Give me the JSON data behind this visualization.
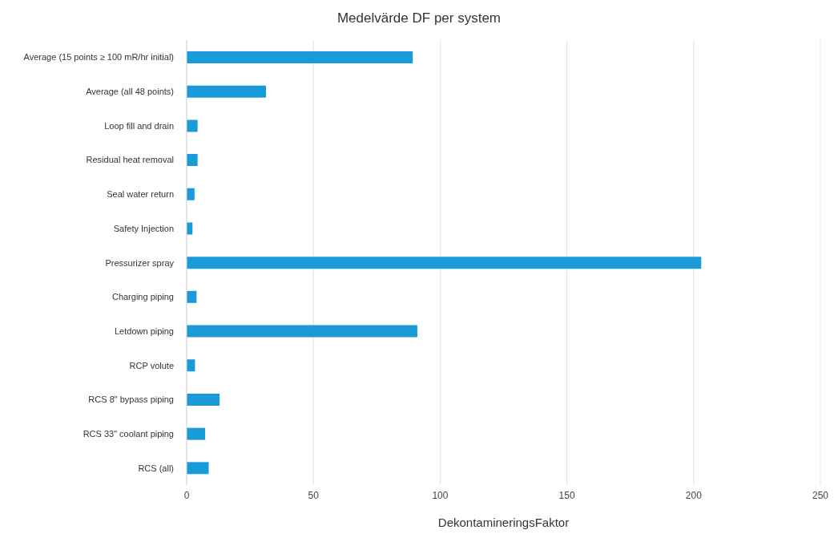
{
  "chart_data": {
    "type": "bar",
    "orientation": "horizontal",
    "title": "Medelvärde DF per system",
    "xlabel": "DekontamineringsFaktor",
    "categories": [
      "Average (15 points ≥ 100 mR/hr initial)",
      "Average (all 48 points)",
      "Loop fill and drain",
      "Residual heat removal",
      "Seal water return",
      "Safety Injection",
      "Pressurizer spray",
      "Charging piping",
      "Letdown piping",
      "RCP volute",
      "RCS 8\" bypass piping",
      "RCS 33\" coolant piping",
      "RCS (all)"
    ],
    "values": [
      89.2,
      31.3,
      4.3,
      4.3,
      3.1,
      2.3,
      203,
      3.9,
      91,
      3.3,
      13,
      7.3,
      8.7
    ],
    "color": "#1a9bd7",
    "xlim": [
      0,
      250
    ],
    "xticks": [
      0,
      50,
      100,
      150,
      200,
      250
    ],
    "grid": "x"
  }
}
